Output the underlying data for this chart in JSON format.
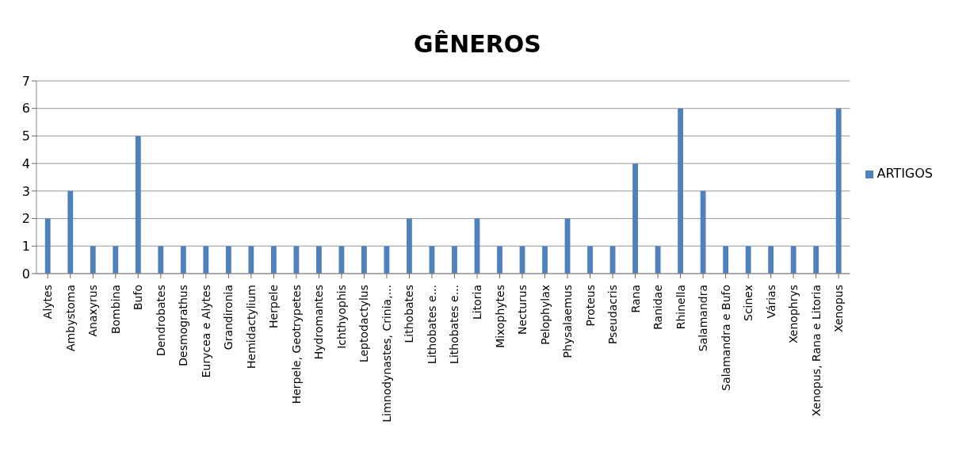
{
  "chart_data": {
    "type": "bar",
    "title": "GÊNEROS",
    "categories": [
      "Alytes",
      "Ambystoma",
      "Anaxyrus",
      "Bombina",
      "Bufo",
      "Dendrobates",
      "Desmograthus",
      "Eurycea e Alytes",
      "Grandironia",
      "Hemidactylium",
      "Herpele",
      "Herpele, Geotrypetes",
      "Hydromantes",
      "Ichthyophis",
      "Leptodactylus",
      "Limnodynastes, Crinia,...",
      "Lithobates",
      "Lithobates e...",
      "Lithobates e...",
      "Litoria",
      "Mixophytes",
      "Necturus",
      "Pelophylax",
      "Physalaemus",
      "Proteus",
      "Pseudacris",
      "Rana",
      "Ranidae",
      "Rhinella",
      "Salamandra",
      "Salamandra e Bufo",
      "Scinex",
      "Várias",
      "Xenophrys",
      "Xenopus, Rana e Litoria",
      "Xenopus"
    ],
    "series": [
      {
        "name": "ARTIGOS",
        "color": "#4f81bd",
        "values": [
          2,
          3,
          1,
          1,
          5,
          1,
          1,
          1,
          1,
          1,
          1,
          1,
          1,
          1,
          1,
          1,
          2,
          1,
          1,
          2,
          1,
          1,
          1,
          2,
          1,
          1,
          4,
          1,
          6,
          3,
          1,
          1,
          1,
          1,
          1,
          6
        ]
      }
    ],
    "ylim": [
      0,
      7
    ],
    "yticks": [
      0,
      1,
      2,
      3,
      4,
      5,
      6,
      7
    ],
    "grid": "y",
    "legend": "right"
  }
}
